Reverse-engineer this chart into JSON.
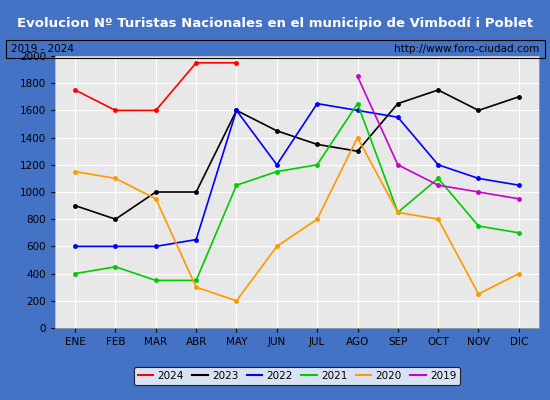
{
  "title": "Evolucion Nº Turistas Nacionales en el municipio de Vimbodí i Poblet",
  "subtitle_left": "2019 - 2024",
  "subtitle_right": "http://www.foro-ciudad.com",
  "months": [
    "ENE",
    "FEB",
    "MAR",
    "ABR",
    "MAY",
    "JUN",
    "JUL",
    "AGO",
    "SEP",
    "OCT",
    "NOV",
    "DIC"
  ],
  "series": {
    "2024": {
      "color": "#ff0000",
      "data": [
        1750,
        1600,
        1600,
        1950,
        1950,
        null,
        null,
        null,
        null,
        null,
        null,
        null
      ]
    },
    "2023": {
      "color": "#000000",
      "data": [
        900,
        800,
        1000,
        1000,
        1600,
        1450,
        1350,
        1300,
        1650,
        1750,
        1600,
        1700
      ]
    },
    "2022": {
      "color": "#0000ff",
      "data": [
        600,
        600,
        600,
        650,
        1600,
        1200,
        1650,
        1600,
        1550,
        1200,
        1100,
        1050
      ]
    },
    "2021": {
      "color": "#00cc00",
      "data": [
        400,
        450,
        350,
        350,
        1050,
        1150,
        1200,
        1650,
        850,
        1100,
        750,
        700
      ]
    },
    "2020": {
      "color": "#ff9900",
      "data": [
        1150,
        1100,
        950,
        300,
        200,
        600,
        800,
        1400,
        850,
        800,
        250,
        400
      ]
    },
    "2019": {
      "color": "#cc00cc",
      "data": [
        null,
        null,
        null,
        null,
        null,
        null,
        null,
        1850,
        1200,
        1050,
        1000,
        950
      ]
    }
  },
  "ylim": [
    0,
    2000
  ],
  "yticks": [
    0,
    200,
    400,
    600,
    800,
    1000,
    1200,
    1400,
    1600,
    1800,
    2000
  ],
  "title_bg_color": "#4472c4",
  "title_font_color": "#ffffff",
  "plot_bg_color": "#e8e8e8",
  "grid_color": "#ffffff",
  "border_color": "#4472c4"
}
